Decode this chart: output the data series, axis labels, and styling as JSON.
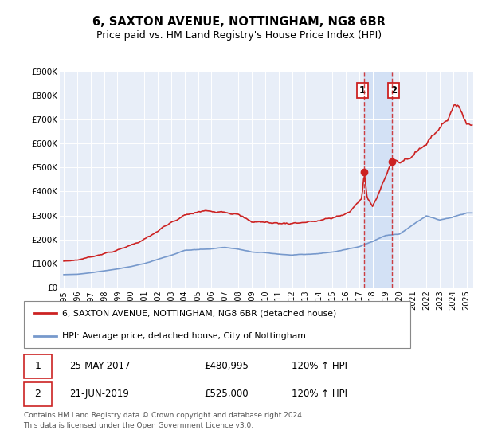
{
  "title": "6, SAXTON AVENUE, NOTTINGHAM, NG8 6BR",
  "subtitle": "Price paid vs. HM Land Registry's House Price Index (HPI)",
  "title_fontsize": 10.5,
  "subtitle_fontsize": 9,
  "ylim": [
    0,
    900000
  ],
  "yticks": [
    0,
    100000,
    200000,
    300000,
    400000,
    500000,
    600000,
    700000,
    800000,
    900000
  ],
  "ytick_labels": [
    "£0",
    "£100K",
    "£200K",
    "£300K",
    "£400K",
    "£500K",
    "£600K",
    "£700K",
    "£800K",
    "£900K"
  ],
  "plot_bg_color": "#e8eef8",
  "red_color": "#cc2222",
  "blue_color": "#7799cc",
  "shade_color": "#d0dff5",
  "legend_label_red": "6, SAXTON AVENUE, NOTTINGHAM, NG8 6BR (detached house)",
  "legend_label_blue": "HPI: Average price, detached house, City of Nottingham",
  "annotation1_label": "1",
  "annotation1_date": "25-MAY-2017",
  "annotation1_price": "£480,995",
  "annotation1_hpi": "120% ↑ HPI",
  "annotation2_label": "2",
  "annotation2_date": "21-JUN-2019",
  "annotation2_price": "£525,000",
  "annotation2_hpi": "120% ↑ HPI",
  "footer": "Contains HM Land Registry data © Crown copyright and database right 2024.\nThis data is licensed under the Open Government Licence v3.0.",
  "sale1_year": 2017.38,
  "sale1_y": 480995,
  "sale2_year": 2019.46,
  "sale2_y": 525000,
  "xtick_years": [
    1995,
    1996,
    1997,
    1998,
    1999,
    2000,
    2001,
    2002,
    2003,
    2004,
    2005,
    2006,
    2007,
    2008,
    2009,
    2010,
    2011,
    2012,
    2013,
    2014,
    2015,
    2016,
    2017,
    2018,
    2019,
    2020,
    2021,
    2022,
    2023,
    2024,
    2025
  ],
  "xlim_start": 1994.7,
  "xlim_end": 2025.5
}
